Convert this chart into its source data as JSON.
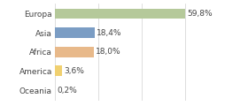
{
  "categories": [
    "Europa",
    "Asia",
    "Africa",
    "America",
    "Oceania"
  ],
  "values": [
    59.8,
    18.4,
    18.0,
    3.6,
    0.2
  ],
  "labels": [
    "59,8%",
    "18,4%",
    "18,0%",
    "3,6%",
    "0,2%"
  ],
  "bar_colors": [
    "#b5c99a",
    "#7b9dc4",
    "#e8b98a",
    "#f0d070",
    "#cccccc"
  ],
  "background_color": "#ffffff",
  "xlim": [
    0,
    75
  ],
  "bar_height": 0.55,
  "label_fontsize": 6.5,
  "tick_fontsize": 6.5,
  "grid_color": "#d0d0d0",
  "grid_xticks": [
    0,
    20,
    40,
    60
  ]
}
